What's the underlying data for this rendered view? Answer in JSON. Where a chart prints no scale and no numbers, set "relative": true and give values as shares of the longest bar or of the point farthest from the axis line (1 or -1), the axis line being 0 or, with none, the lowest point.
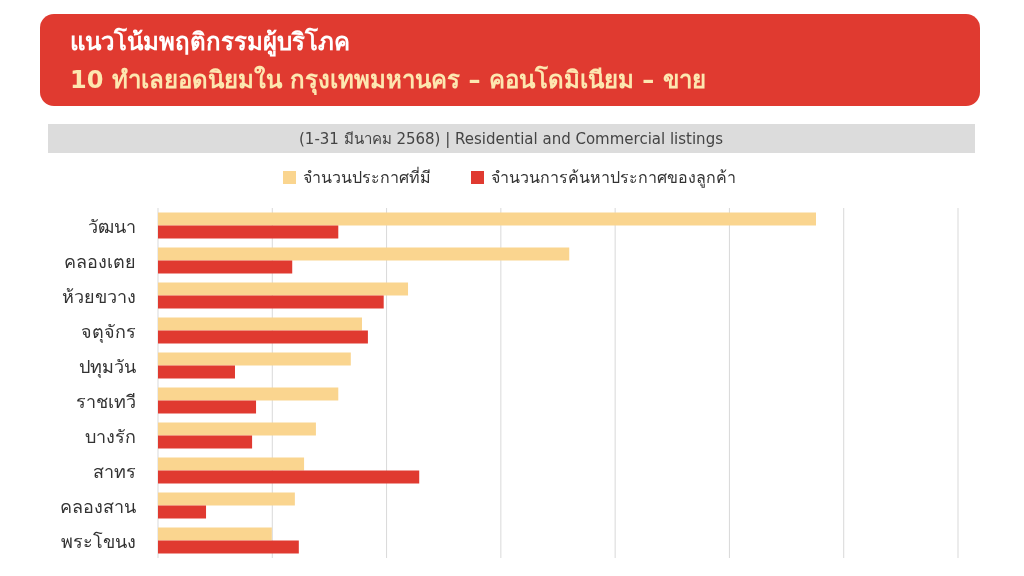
{
  "chart_data": {
    "type": "bar",
    "orientation": "horizontal",
    "relative": true,
    "title": "แนวโน้มพฤติกรรมผู้บริโภค",
    "subtitle": "10 ทำเลยอดนิยมใน กรุงเทพมหานคร – คอนโดมิเนียม – ขาย",
    "annotations": [
      "(1-31 มีนาคม 2568) | Residential and Commercial listings"
    ],
    "categories": [
      "วัฒนา",
      "คลองเตย",
      "ห้วยขวาง",
      "จตุจักร",
      "ปทุมวัน",
      "ราชเทวี",
      "บางรัก",
      "สาทร",
      "คลองสาน",
      "พระโขนง"
    ],
    "series": [
      {
        "name": "จำนวนประกาศที่มี",
        "color": "#fad58f",
        "values": [
          1.0,
          0.625,
          0.38,
          0.31,
          0.293,
          0.274,
          0.24,
          0.222,
          0.208,
          0.173
        ]
      },
      {
        "name": "จำนวนการค้นหาประกาศของลูกค้า",
        "color": "#e03a30",
        "values": [
          0.274,
          0.204,
          0.343,
          0.319,
          0.117,
          0.149,
          0.143,
          0.397,
          0.073,
          0.214
        ]
      }
    ],
    "grid": "x",
    "legend": "top"
  }
}
